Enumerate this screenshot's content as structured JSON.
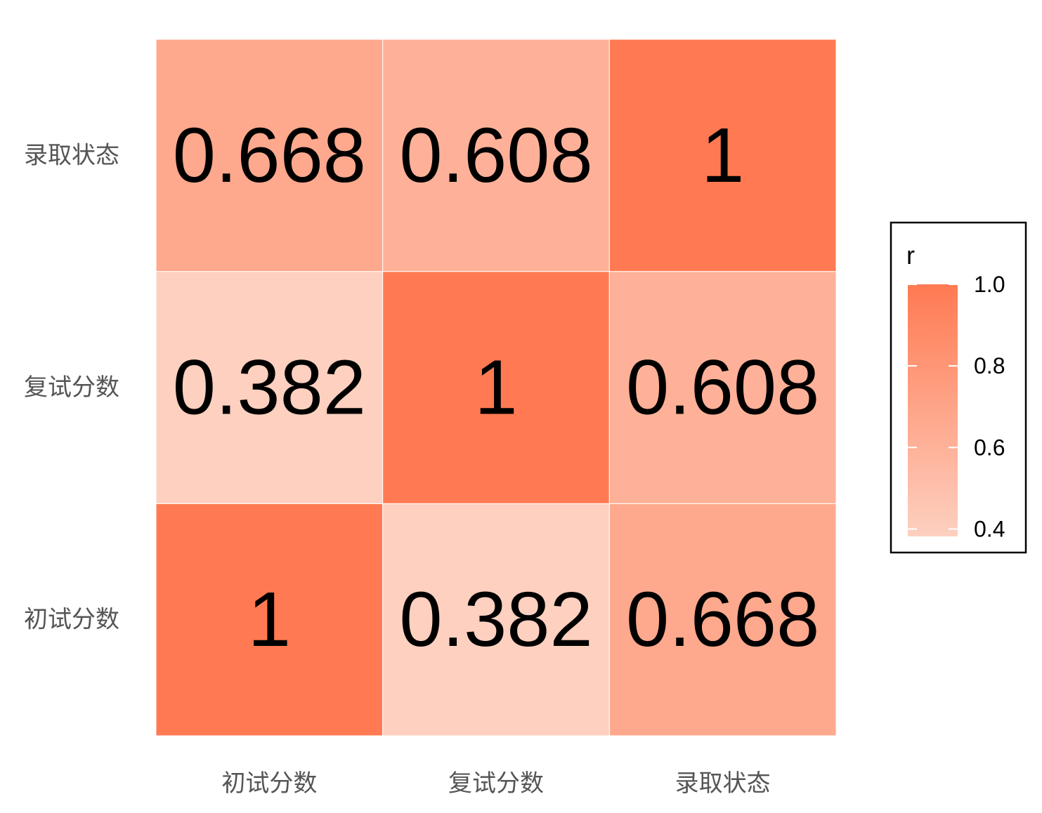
{
  "chart_data": {
    "type": "heatmap",
    "x_categories": [
      "初试分数",
      "复试分数",
      "录取状态"
    ],
    "y_categories": [
      "初试分数",
      "复试分数",
      "录取状态"
    ],
    "matrix": [
      [
        1,
        0.382,
        0.668
      ],
      [
        0.382,
        1,
        0.608
      ],
      [
        0.668,
        0.608,
        1
      ]
    ],
    "cell_labels": [
      [
        "1",
        "0.382",
        "0.668"
      ],
      [
        "0.382",
        "1",
        "0.608"
      ],
      [
        "0.668",
        "0.608",
        "1"
      ]
    ],
    "color_scale": {
      "low": "#fdd0c0",
      "high": "#ff7a52",
      "range": [
        0.382,
        1
      ]
    },
    "legend": {
      "title": "r",
      "ticks": [
        1.0,
        0.8,
        0.6,
        0.4
      ],
      "tick_labels": [
        "1.0",
        "0.8",
        "0.6",
        "0.4"
      ],
      "placement": "right"
    },
    "grid": false
  }
}
